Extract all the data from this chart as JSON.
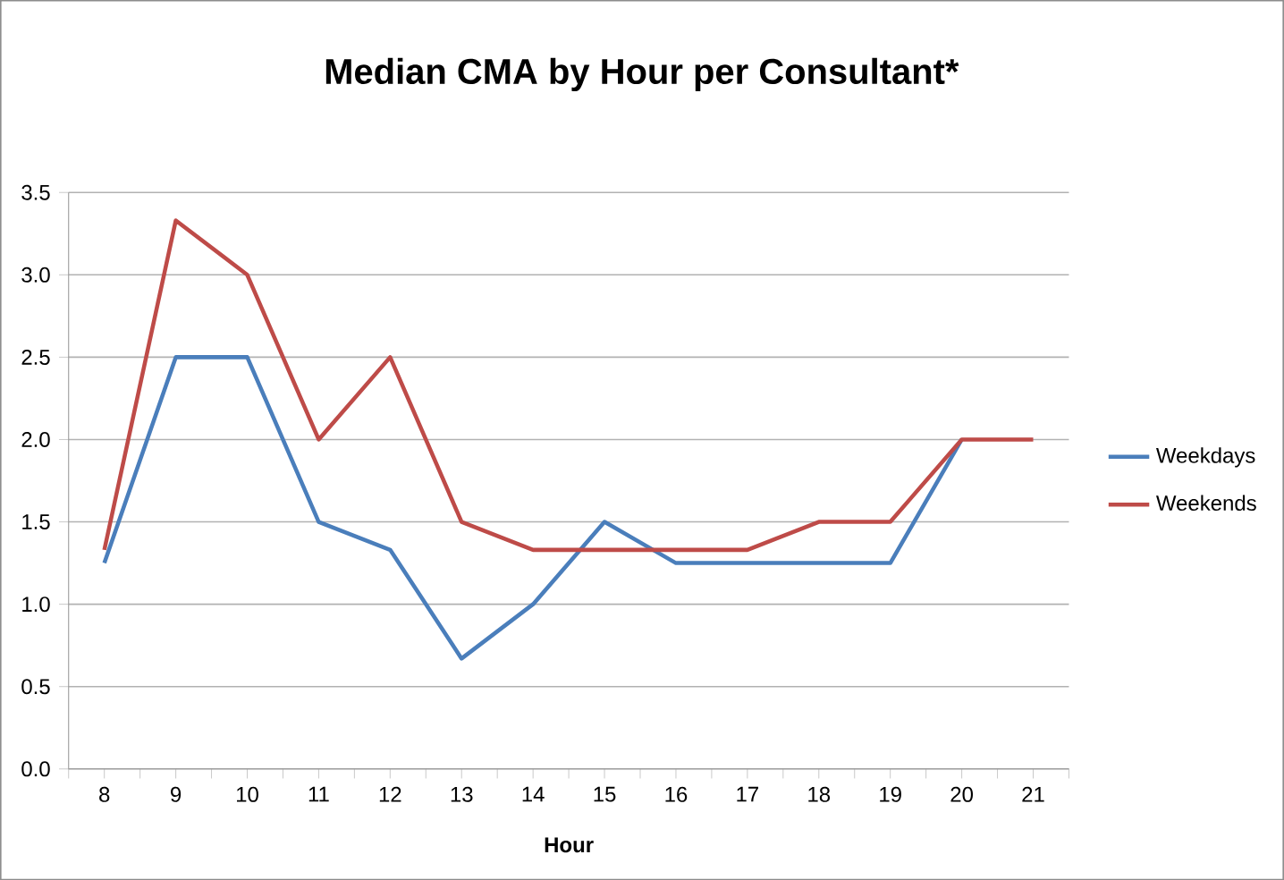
{
  "chart_data": {
    "type": "line",
    "title": "Median CMA by Hour per Consultant*",
    "xlabel": "Hour",
    "categories": [
      "8",
      "9",
      "10",
      "11",
      "12",
      "13",
      "14",
      "15",
      "16",
      "17",
      "18",
      "19",
      "20",
      "21"
    ],
    "series": [
      {
        "name": "Weekdays",
        "color": "#4a7ebb",
        "values": [
          1.25,
          2.5,
          2.5,
          1.5,
          1.33,
          0.67,
          1.0,
          1.5,
          1.25,
          1.25,
          1.25,
          1.25,
          2.0,
          null
        ]
      },
      {
        "name": "Weekends",
        "color": "#be4b48",
        "values": [
          1.33,
          3.33,
          3.0,
          2.0,
          2.5,
          1.5,
          1.33,
          1.33,
          1.33,
          1.33,
          1.5,
          1.5,
          2.0,
          2.0
        ]
      }
    ],
    "ylim": [
      0,
      3.5
    ],
    "yticks": [
      {
        "value": 0,
        "label": "0.0"
      },
      {
        "value": 0.5,
        "label": "0.5"
      },
      {
        "value": 1,
        "label": "1.0"
      },
      {
        "value": 1.5,
        "label": "1.5"
      },
      {
        "value": 2,
        "label": "2.0"
      },
      {
        "value": 2.5,
        "label": "2.5"
      },
      {
        "value": 3,
        "label": "3.0"
      },
      {
        "value": 3.5,
        "label": "3.5"
      }
    ],
    "grid": "y",
    "legend": "right",
    "marker": "none",
    "line_style": "solid"
  }
}
